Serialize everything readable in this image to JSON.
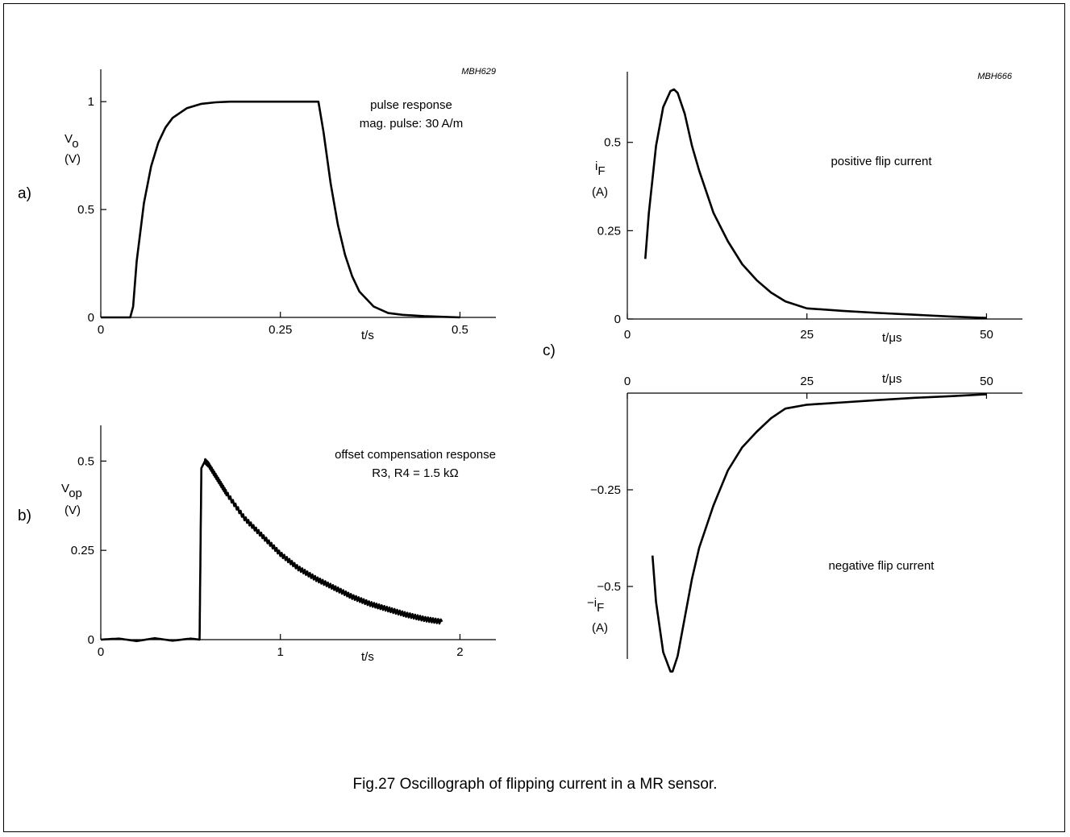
{
  "chart_data": [
    {
      "id": "a",
      "type": "line",
      "panel_label": "a)",
      "code": "MBH629",
      "annotations": [
        "pulse response",
        "mag. pulse: 30 A/m"
      ],
      "ylabel": {
        "main": "V",
        "sub": "o",
        "unit": "(V)"
      },
      "xlabel": "t/s",
      "xlim": [
        0,
        0.55
      ],
      "ylim": [
        0,
        1.15
      ],
      "xticks": [
        {
          "v": 0,
          "label": "0"
        },
        {
          "v": 0.25,
          "label": "0.25"
        },
        {
          "v": 0.5,
          "label": "0.5"
        }
      ],
      "yticks": [
        {
          "v": 0,
          "label": "0"
        },
        {
          "v": 0.5,
          "label": "0.5"
        },
        {
          "v": 1,
          "label": "1"
        }
      ],
      "series": [
        {
          "x": [
            0,
            0.041,
            0.045,
            0.05,
            0.06,
            0.07,
            0.08,
            0.09,
            0.1,
            0.12,
            0.14,
            0.16,
            0.18,
            0.2,
            0.25,
            0.3,
            0.303,
            0.31,
            0.32,
            0.33,
            0.34,
            0.35,
            0.36,
            0.38,
            0.4,
            0.42,
            0.45,
            0.5
          ],
          "y": [
            0,
            0,
            0.05,
            0.26,
            0.53,
            0.7,
            0.81,
            0.88,
            0.925,
            0.97,
            0.99,
            0.997,
            1,
            1,
            1,
            1,
            1,
            0.86,
            0.62,
            0.43,
            0.29,
            0.19,
            0.12,
            0.05,
            0.02,
            0.012,
            0.006,
            0
          ]
        }
      ]
    },
    {
      "id": "b",
      "type": "line",
      "panel_label": "b)",
      "annotations": [
        "offset compensation response",
        "R3, R4 = 1.5 kΩ"
      ],
      "ylabel": {
        "main": "V",
        "sub": "op",
        "unit": "(V)"
      },
      "xlabel": "t/s",
      "xlim": [
        0,
        2.2
      ],
      "ylim": [
        0,
        0.6
      ],
      "xticks": [
        {
          "v": 0,
          "label": "0"
        },
        {
          "v": 1,
          "label": "1"
        },
        {
          "v": 2,
          "label": "2"
        }
      ],
      "yticks": [
        {
          "v": 0,
          "label": "0"
        },
        {
          "v": 0.25,
          "label": "0.25"
        },
        {
          "v": 0.5,
          "label": "0.5"
        }
      ],
      "series": [
        {
          "x": [
            0,
            0.1,
            0.2,
            0.3,
            0.4,
            0.5,
            0.55,
            0.56,
            0.58,
            0.6,
            0.65,
            0.7,
            0.8,
            0.9,
            1.0,
            1.1,
            1.2,
            1.3,
            1.4,
            1.5,
            1.6,
            1.7,
            1.8,
            1.9
          ],
          "y": [
            0,
            0.003,
            -0.004,
            0.004,
            -0.003,
            0.003,
            0,
            0.48,
            0.5,
            0.49,
            0.45,
            0.41,
            0.34,
            0.29,
            0.24,
            0.2,
            0.17,
            0.145,
            0.12,
            0.1,
            0.085,
            0.07,
            0.058,
            0.05
          ]
        }
      ]
    },
    {
      "id": "c_pos",
      "type": "line",
      "panel_label": "c)",
      "code": "MBH666",
      "annotations": [
        "positive flip current"
      ],
      "ylabel": {
        "main": "i",
        "sub": "F",
        "unit": "(A)"
      },
      "xlabel": "t/μs",
      "xlim": [
        0,
        55
      ],
      "ylim": [
        0,
        0.7
      ],
      "xticks": [
        {
          "v": 0,
          "label": "0"
        },
        {
          "v": 25,
          "label": "25"
        },
        {
          "v": 50,
          "label": "50"
        }
      ],
      "yticks": [
        {
          "v": 0,
          "label": "0"
        },
        {
          "v": 0.25,
          "label": "0.25"
        },
        {
          "v": 0.5,
          "label": "0.5"
        }
      ],
      "series": [
        {
          "x": [
            2.5,
            3,
            4,
            5,
            6,
            6.5,
            7,
            8,
            9,
            10,
            12,
            14,
            16,
            18,
            20,
            22,
            25,
            30,
            35,
            40,
            45,
            50
          ],
          "y": [
            0.17,
            0.3,
            0.49,
            0.6,
            0.645,
            0.65,
            0.64,
            0.58,
            0.49,
            0.42,
            0.3,
            0.22,
            0.155,
            0.11,
            0.075,
            0.05,
            0.03,
            0.023,
            0.017,
            0.012,
            0.007,
            0.003
          ]
        }
      ]
    },
    {
      "id": "c_neg",
      "type": "line",
      "annotations": [
        "negative flip current"
      ],
      "ylabel": {
        "main": "−i",
        "sub": "F",
        "unit": "(A)"
      },
      "xlabel": "t/μs",
      "xlim": [
        0,
        55
      ],
      "ylim": [
        -0.75,
        0
      ],
      "xticks": [
        {
          "v": 0,
          "label": "0"
        },
        {
          "v": 25,
          "label": "25"
        },
        {
          "v": 50,
          "label": "50"
        }
      ],
      "yticks": [
        {
          "v": -0.25,
          "label": "−0.25"
        },
        {
          "v": -0.5,
          "label": "−0.5"
        }
      ],
      "series": [
        {
          "x": [
            3.5,
            4,
            5,
            6,
            6.3,
            7,
            8,
            9,
            10,
            12,
            14,
            16,
            18,
            20,
            22,
            25,
            30,
            35,
            40,
            45,
            50
          ],
          "y": [
            -0.42,
            -0.54,
            -0.67,
            -0.72,
            -0.72,
            -0.68,
            -0.58,
            -0.48,
            -0.4,
            -0.29,
            -0.2,
            -0.14,
            -0.1,
            -0.065,
            -0.04,
            -0.03,
            -0.024,
            -0.018,
            -0.012,
            -0.008,
            -0.003
          ]
        }
      ]
    }
  ],
  "caption": "Fig.27  Oscillograph of flipping current in a MR sensor."
}
